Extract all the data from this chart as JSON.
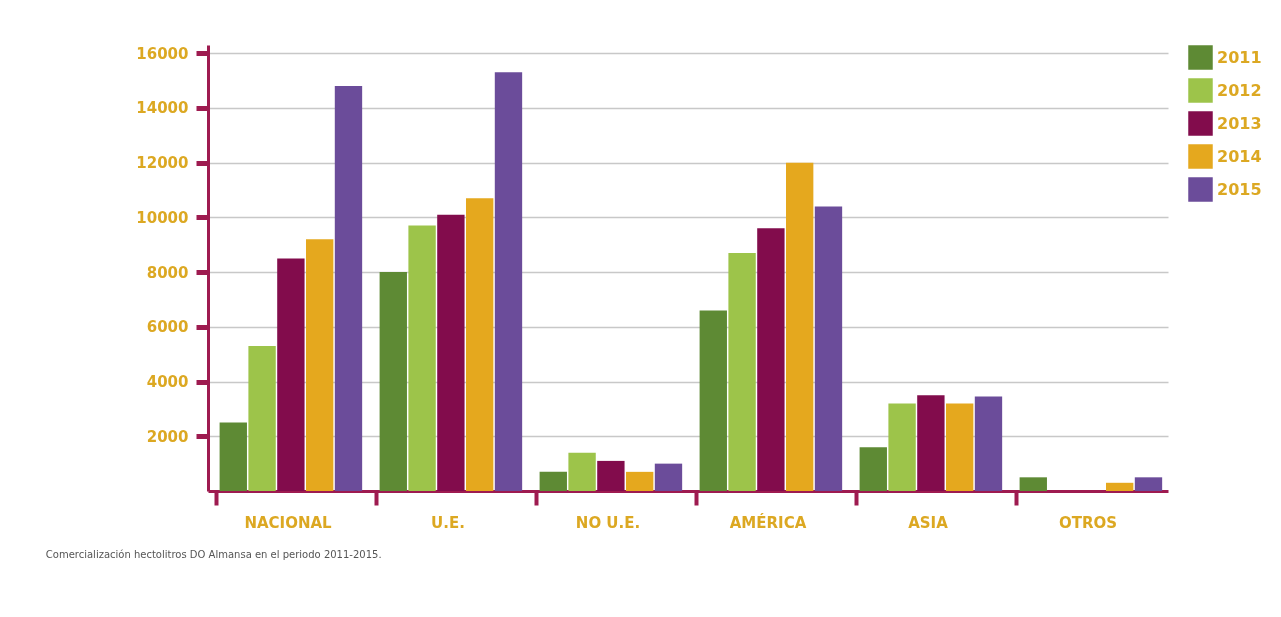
{
  "chart_data": {
    "type": "bar",
    "categories": [
      "NACIONAL",
      "U.E.",
      "NO U.E.",
      "AMÉRICA",
      "ASIA",
      "OTROS"
    ],
    "series": [
      {
        "name": "2011",
        "color": "#5e8a34",
        "values": [
          2500,
          8000,
          700,
          6600,
          1600,
          500
        ]
      },
      {
        "name": "2012",
        "color": "#9dc44a",
        "values": [
          5300,
          9700,
          1400,
          8700,
          3200,
          null
        ]
      },
      {
        "name": "2013",
        "color": "#820c4c",
        "values": [
          8500,
          10100,
          1100,
          9600,
          3500,
          null
        ]
      },
      {
        "name": "2014",
        "color": "#e5a81e",
        "values": [
          9200,
          10700,
          700,
          12000,
          3200,
          300
        ]
      },
      {
        "name": "2015",
        "color": "#6b4c9a",
        "values": [
          14800,
          15300,
          1000,
          10400,
          3450,
          500
        ]
      }
    ],
    "ylim": [
      0,
      16300
    ],
    "yticks": [
      2000,
      4000,
      6000,
      8000,
      10000,
      12000,
      14000,
      16000
    ],
    "grid": "y",
    "legend": "top right",
    "annotations": [
      "Comercialización hectolitros DO Almansa en el periodo 2011-2015."
    ]
  }
}
